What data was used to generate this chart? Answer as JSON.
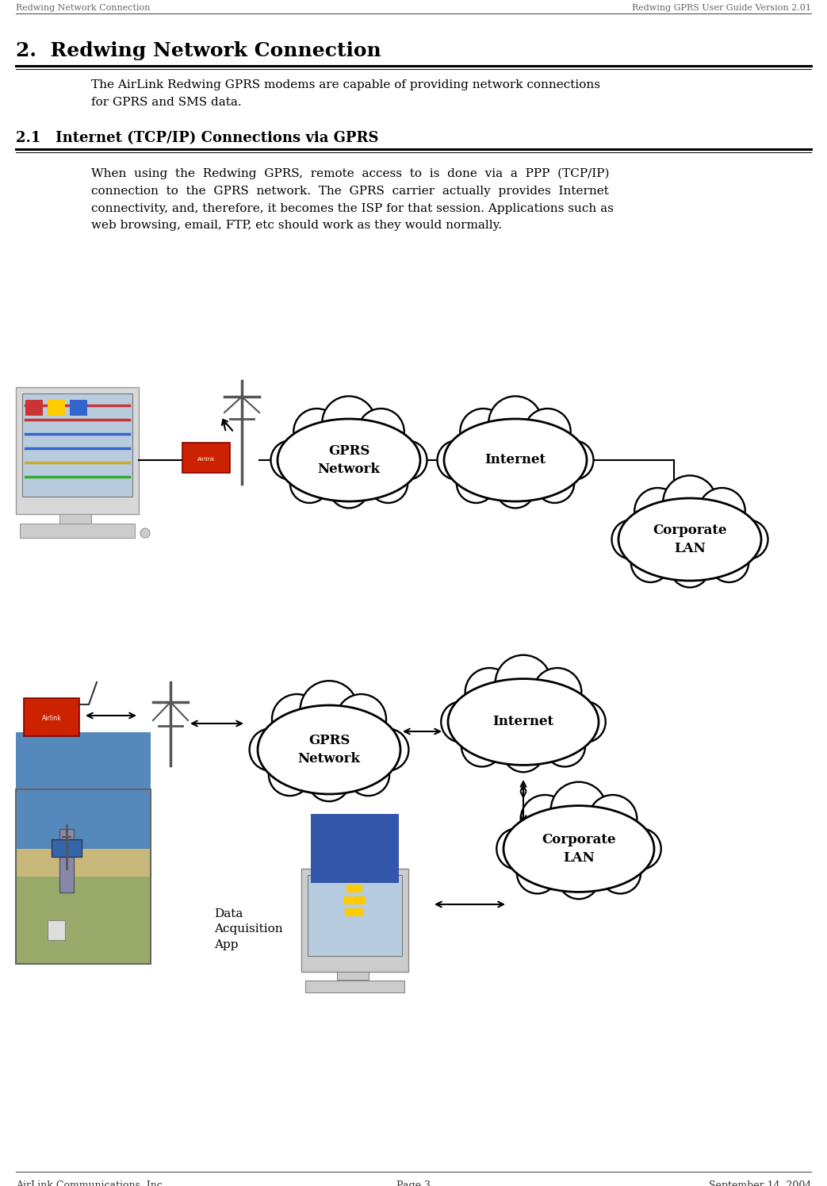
{
  "header_left": "Redwing Network Connection",
  "header_right": "Redwing GPRS User Guide Version 2.01",
  "footer_left": "AirLink Communications, Inc.",
  "footer_center": "Page 3",
  "footer_right": "September 14, 2004",
  "section_title": "2.  Redwing Network Connection",
  "section_body": "The AirLink Redwing GPRS modems are capable of providing network connections\nfor GPRS and SMS data.",
  "subsection_title": "2.1   Internet (TCP/IP) Connections via GPRS",
  "subsection_body": "When  using  the  Redwing  GPRS,  remote  access  to  is  done  via  a  PPP  (TCP/IP)\nconnection  to  the  GPRS  network.  The  GPRS  carrier  actually  provides  Internet\nconnectivity, and, therefore, it becomes the ISP for that session. Applications such as\nweb browsing, email, FTP, etc should work as they would normally.",
  "bg_color": "#ffffff",
  "text_color": "#000000",
  "line_color": "#000000",
  "diagram1": {
    "gprs_label": "GPRS\nNetwork",
    "internet_label": "Internet",
    "corporate_label": "Corporate\nLAN"
  },
  "diagram2": {
    "gprs_label": "GPRS\nNetwork",
    "internet_label": "Internet",
    "corporate_label": "Corporate\nLAN",
    "data_app_label": "Data\nAcquisition\nApp"
  }
}
